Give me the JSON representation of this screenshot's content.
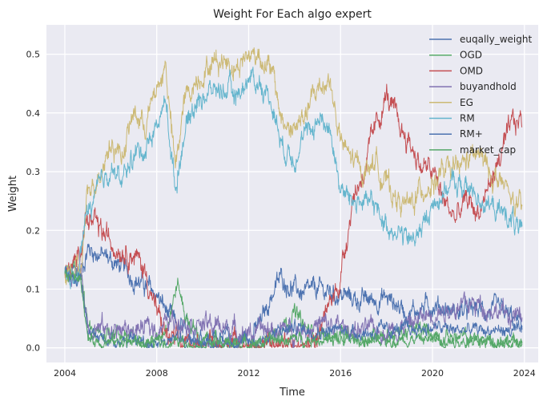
{
  "chart_data": {
    "type": "line",
    "title": "Weight For Each algo expert",
    "xlabel": "Time",
    "ylabel": "Weight",
    "xlim": [
      2003.2,
      2024.6
    ],
    "ylim": [
      -0.025,
      0.55
    ],
    "xticks": [
      2004,
      2008,
      2012,
      2016,
      2020,
      2024
    ],
    "yticks": [
      0.0,
      0.1,
      0.2,
      0.3,
      0.4,
      0.5
    ],
    "grid": true,
    "legend_position": "top-right",
    "series": [
      {
        "name": "euqally_weight",
        "color": "#4c72b0",
        "noise": 0.012,
        "x": [
          2004.0,
          2004.7,
          2005.0,
          2006.0,
          2007.0,
          2008.0,
          2008.6,
          2009.0,
          2010.0,
          2011.0,
          2012.0,
          2012.5,
          2013.0,
          2013.4,
          2014.0,
          2014.5,
          2015.0,
          2016.0,
          2017.0,
          2018.0,
          2019.0,
          2020.0,
          2021.0,
          2022.0,
          2023.0,
          2023.9
        ],
        "y": [
          0.125,
          0.13,
          0.17,
          0.15,
          0.12,
          0.09,
          0.05,
          0.03,
          0.02,
          0.015,
          0.015,
          0.04,
          0.09,
          0.12,
          0.1,
          0.09,
          0.1,
          0.09,
          0.08,
          0.085,
          0.06,
          0.075,
          0.06,
          0.065,
          0.06,
          0.04
        ]
      },
      {
        "name": "OGD",
        "color": "#55a868",
        "noise": 0.01,
        "x": [
          2004.0,
          2004.7,
          2005.0,
          2005.5,
          2006.0,
          2007.0,
          2008.0,
          2008.5,
          2008.9,
          2009.3,
          2010.0,
          2011.0,
          2012.0,
          2012.8,
          2013.5,
          2014.0,
          2014.5,
          2015.5,
          2016.5,
          2017.5,
          2018.5,
          2019.5,
          2020.5,
          2021.5,
          2022.5,
          2023.9
        ],
        "y": [
          0.125,
          0.13,
          0.03,
          0.02,
          0.03,
          0.015,
          0.01,
          0.05,
          0.11,
          0.05,
          0.01,
          0.005,
          0.005,
          0.01,
          0.04,
          0.06,
          0.03,
          0.02,
          0.015,
          0.02,
          0.025,
          0.03,
          0.02,
          0.015,
          0.01,
          0.01
        ]
      },
      {
        "name": "OMD",
        "color": "#c44e52",
        "noise": 0.014,
        "x": [
          2004.0,
          2004.5,
          2004.9,
          2005.5,
          2006.0,
          2006.5,
          2007.0,
          2007.5,
          2008.0,
          2008.5,
          2009.0,
          2010.0,
          2011.0,
          2012.0,
          2013.0,
          2014.0,
          2015.0,
          2016.0,
          2016.5,
          2017.0,
          2017.5,
          2018.0,
          2018.5,
          2019.0,
          2019.5,
          2020.0,
          2020.5,
          2021.0,
          2021.5,
          2022.0,
          2022.5,
          2023.0,
          2023.5,
          2023.9
        ],
        "y": [
          0.125,
          0.14,
          0.22,
          0.2,
          0.18,
          0.17,
          0.16,
          0.13,
          0.06,
          0.015,
          0.005,
          0.003,
          0.003,
          0.003,
          0.003,
          0.005,
          0.02,
          0.12,
          0.25,
          0.3,
          0.37,
          0.43,
          0.38,
          0.35,
          0.31,
          0.3,
          0.25,
          0.22,
          0.25,
          0.23,
          0.28,
          0.33,
          0.38,
          0.39
        ]
      },
      {
        "name": "buyandhold",
        "color": "#8172b2",
        "noise": 0.012,
        "x": [
          2004.0,
          2004.7,
          2005.0,
          2006.0,
          2007.0,
          2008.0,
          2009.0,
          2010.0,
          2011.0,
          2012.0,
          2013.0,
          2014.0,
          2015.0,
          2016.0,
          2017.0,
          2018.0,
          2019.0,
          2020.0,
          2021.0,
          2022.0,
          2023.0,
          2023.9
        ],
        "y": [
          0.125,
          0.13,
          0.04,
          0.03,
          0.03,
          0.035,
          0.05,
          0.04,
          0.035,
          0.025,
          0.03,
          0.03,
          0.04,
          0.035,
          0.03,
          0.03,
          0.04,
          0.06,
          0.07,
          0.075,
          0.06,
          0.05
        ]
      },
      {
        "name": "EG",
        "color": "#ccb974",
        "noise": 0.014,
        "x": [
          2004.0,
          2004.7,
          2005.0,
          2005.5,
          2006.0,
          2006.5,
          2007.0,
          2007.5,
          2008.0,
          2008.4,
          2008.8,
          2009.2,
          2009.6,
          2010.0,
          2010.5,
          2011.0,
          2011.5,
          2012.0,
          2012.5,
          2013.0,
          2013.5,
          2014.0,
          2014.5,
          2015.0,
          2015.5,
          2016.0,
          2016.5,
          2017.0,
          2017.5,
          2018.0,
          2018.5,
          2019.0,
          2019.5,
          2020.0,
          2020.5,
          2021.0,
          2021.5,
          2022.0,
          2022.5,
          2023.0,
          2023.5,
          2023.9
        ],
        "y": [
          0.125,
          0.13,
          0.26,
          0.3,
          0.35,
          0.33,
          0.4,
          0.38,
          0.44,
          0.48,
          0.3,
          0.42,
          0.45,
          0.47,
          0.49,
          0.49,
          0.48,
          0.5,
          0.5,
          0.47,
          0.38,
          0.37,
          0.4,
          0.44,
          0.46,
          0.35,
          0.32,
          0.3,
          0.32,
          0.28,
          0.25,
          0.24,
          0.27,
          0.28,
          0.3,
          0.3,
          0.32,
          0.33,
          0.3,
          0.28,
          0.25,
          0.23
        ]
      },
      {
        "name": "RM",
        "color": "#64b5cd",
        "noise": 0.013,
        "x": [
          2004.0,
          2004.5,
          2004.9,
          2005.5,
          2006.0,
          2006.5,
          2007.0,
          2007.5,
          2008.0,
          2008.4,
          2008.8,
          2009.2,
          2009.6,
          2010.0,
          2010.5,
          2011.0,
          2011.5,
          2012.0,
          2012.5,
          2013.0,
          2013.5,
          2014.0,
          2014.5,
          2015.0,
          2015.5,
          2016.0,
          2016.5,
          2017.0,
          2017.5,
          2018.0,
          2018.5,
          2019.0,
          2019.5,
          2020.0,
          2020.5,
          2021.0,
          2021.5,
          2022.0,
          2022.5,
          2023.0,
          2023.5,
          2023.9
        ],
        "y": [
          0.125,
          0.11,
          0.22,
          0.27,
          0.31,
          0.28,
          0.33,
          0.34,
          0.38,
          0.42,
          0.27,
          0.37,
          0.41,
          0.43,
          0.44,
          0.44,
          0.43,
          0.46,
          0.45,
          0.42,
          0.34,
          0.33,
          0.36,
          0.39,
          0.38,
          0.27,
          0.25,
          0.25,
          0.24,
          0.21,
          0.2,
          0.18,
          0.2,
          0.24,
          0.27,
          0.28,
          0.27,
          0.26,
          0.24,
          0.23,
          0.22,
          0.185
        ]
      },
      {
        "name": "RM+",
        "color": "#4c72b0",
        "noise": 0.008,
        "x": [
          2004.0,
          2004.7,
          2005.0,
          2006.0,
          2007.0,
          2008.0,
          2009.0,
          2010.0,
          2011.0,
          2012.0,
          2013.0,
          2013.5,
          2014.0,
          2015.0,
          2016.0,
          2017.0,
          2018.0,
          2019.0,
          2020.0,
          2021.0,
          2022.0,
          2023.0,
          2023.9
        ],
        "y": [
          0.125,
          0.12,
          0.02,
          0.015,
          0.01,
          0.01,
          0.015,
          0.01,
          0.01,
          0.01,
          0.02,
          0.03,
          0.035,
          0.03,
          0.03,
          0.025,
          0.03,
          0.03,
          0.035,
          0.03,
          0.03,
          0.03,
          0.025
        ]
      },
      {
        "name": "market_cap",
        "color": "#55a868",
        "noise": 0.007,
        "x": [
          2004.0,
          2004.7,
          2005.0,
          2006.0,
          2007.0,
          2008.0,
          2009.0,
          2010.0,
          2011.0,
          2012.0,
          2013.0,
          2014.0,
          2015.0,
          2016.0,
          2017.0,
          2018.0,
          2019.0,
          2020.0,
          2021.0,
          2022.0,
          2023.0,
          2023.9
        ],
        "y": [
          0.125,
          0.12,
          0.015,
          0.01,
          0.01,
          0.008,
          0.01,
          0.008,
          0.008,
          0.008,
          0.012,
          0.015,
          0.015,
          0.012,
          0.012,
          0.012,
          0.015,
          0.015,
          0.012,
          0.012,
          0.012,
          0.01
        ]
      }
    ]
  }
}
